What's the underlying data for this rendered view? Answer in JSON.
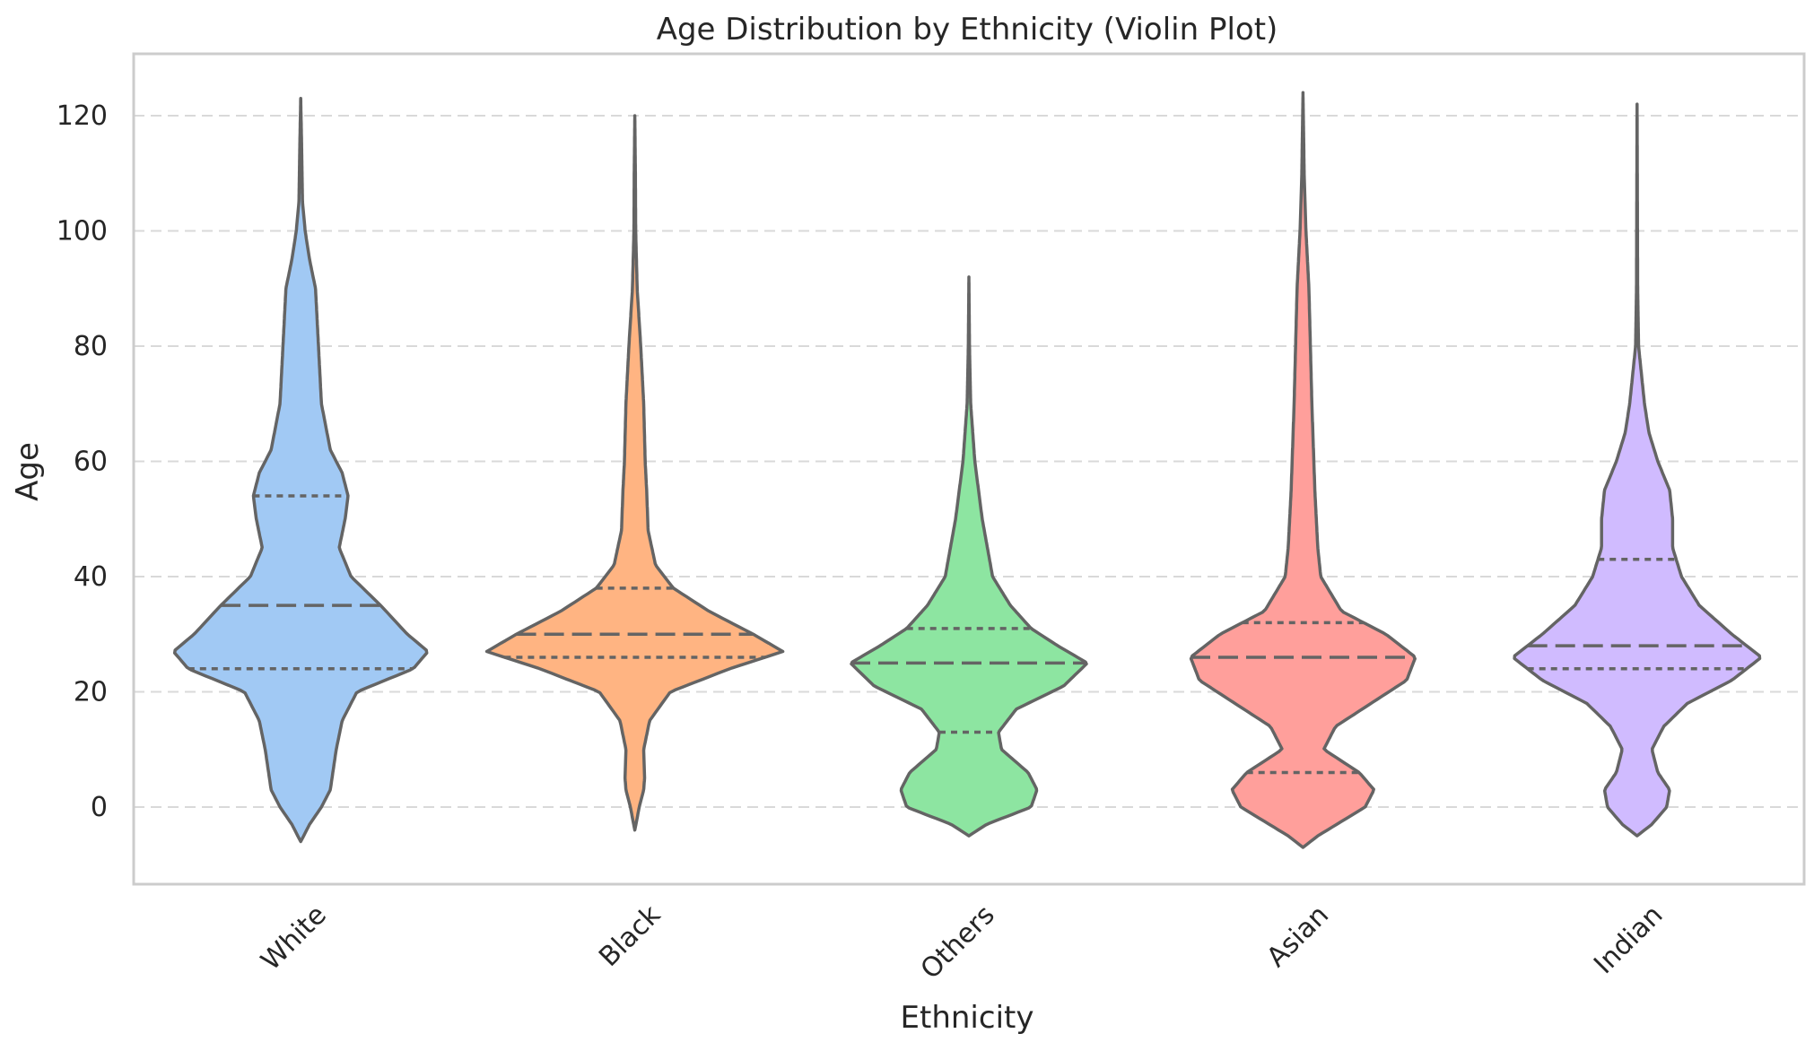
{
  "chart_data": {
    "type": "violin",
    "title": "Age Distribution by Ethnicity (Violin Plot)",
    "xlabel": "Ethnicity",
    "ylabel": "Age",
    "ylim": [
      -13,
      130
    ],
    "yticks": [
      0,
      20,
      40,
      60,
      80,
      100,
      120
    ],
    "grid": "horizontal-dashed",
    "categories": [
      "White",
      "Black",
      "Others",
      "Asian",
      "Indian"
    ],
    "colors": [
      "#a1c9f4",
      "#ffb482",
      "#8de5a1",
      "#ff9f9b",
      "#d0bbff"
    ],
    "series": [
      {
        "name": "White",
        "min": -6,
        "max": 123,
        "q1": 24,
        "median": 35,
        "q3": 54,
        "density": [
          [
            -6,
            0.0
          ],
          [
            -3,
            0.03
          ],
          [
            0,
            0.07
          ],
          [
            3,
            0.1
          ],
          [
            10,
            0.12
          ],
          [
            15,
            0.14
          ],
          [
            20,
            0.19
          ],
          [
            24,
            0.38
          ],
          [
            27,
            0.43
          ],
          [
            30,
            0.36
          ],
          [
            35,
            0.27
          ],
          [
            40,
            0.17
          ],
          [
            45,
            0.13
          ],
          [
            50,
            0.15
          ],
          [
            54,
            0.16
          ],
          [
            58,
            0.14
          ],
          [
            62,
            0.1
          ],
          [
            70,
            0.07
          ],
          [
            80,
            0.06
          ],
          [
            90,
            0.05
          ],
          [
            95,
            0.03
          ],
          [
            100,
            0.015
          ],
          [
            105,
            0.006
          ],
          [
            115,
            0.003
          ],
          [
            123,
            0.0
          ]
        ]
      },
      {
        "name": "Black",
        "min": -4,
        "max": 120,
        "q1": 26,
        "median": 30,
        "q3": 38,
        "density": [
          [
            -4,
            0.0
          ],
          [
            0,
            0.015
          ],
          [
            3,
            0.03
          ],
          [
            5,
            0.033
          ],
          [
            10,
            0.03
          ],
          [
            15,
            0.05
          ],
          [
            20,
            0.12
          ],
          [
            24,
            0.32
          ],
          [
            27,
            0.5
          ],
          [
            30,
            0.4
          ],
          [
            34,
            0.25
          ],
          [
            38,
            0.13
          ],
          [
            42,
            0.07
          ],
          [
            48,
            0.045
          ],
          [
            55,
            0.04
          ],
          [
            60,
            0.035
          ],
          [
            70,
            0.03
          ],
          [
            80,
            0.02
          ],
          [
            90,
            0.008
          ],
          [
            100,
            0.003
          ],
          [
            110,
            0.002
          ],
          [
            120,
            0.0
          ]
        ]
      },
      {
        "name": "Others",
        "min": -5,
        "max": 92,
        "q1": 13,
        "median": 25,
        "q3": 31,
        "density": [
          [
            -5,
            0.0
          ],
          [
            -3,
            0.06
          ],
          [
            0,
            0.21
          ],
          [
            3,
            0.23
          ],
          [
            6,
            0.2
          ],
          [
            10,
            0.11
          ],
          [
            13,
            0.1
          ],
          [
            17,
            0.16
          ],
          [
            21,
            0.32
          ],
          [
            25,
            0.4
          ],
          [
            28,
            0.3
          ],
          [
            31,
            0.21
          ],
          [
            35,
            0.14
          ],
          [
            40,
            0.08
          ],
          [
            50,
            0.045
          ],
          [
            60,
            0.02
          ],
          [
            70,
            0.006
          ],
          [
            80,
            0.002
          ],
          [
            92,
            0.0
          ]
        ]
      },
      {
        "name": "Asian",
        "min": -7,
        "max": 124,
        "q1": 6,
        "median": 26,
        "q3": 32,
        "density": [
          [
            -7,
            0.0
          ],
          [
            -5,
            0.05
          ],
          [
            0,
            0.21
          ],
          [
            3,
            0.24
          ],
          [
            6,
            0.19
          ],
          [
            10,
            0.07
          ],
          [
            14,
            0.11
          ],
          [
            18,
            0.23
          ],
          [
            22,
            0.35
          ],
          [
            26,
            0.38
          ],
          [
            30,
            0.28
          ],
          [
            34,
            0.13
          ],
          [
            40,
            0.06
          ],
          [
            45,
            0.05
          ],
          [
            55,
            0.04
          ],
          [
            70,
            0.03
          ],
          [
            80,
            0.025
          ],
          [
            90,
            0.02
          ],
          [
            100,
            0.01
          ],
          [
            110,
            0.004
          ],
          [
            124,
            0.0
          ]
        ]
      },
      {
        "name": "Indian",
        "min": -5,
        "max": 122,
        "q1": 24,
        "median": 28,
        "q3": 43,
        "density": [
          [
            -5,
            0.0
          ],
          [
            -3,
            0.05
          ],
          [
            0,
            0.1
          ],
          [
            3,
            0.11
          ],
          [
            6,
            0.07
          ],
          [
            10,
            0.05
          ],
          [
            14,
            0.09
          ],
          [
            18,
            0.17
          ],
          [
            22,
            0.32
          ],
          [
            26,
            0.42
          ],
          [
            30,
            0.32
          ],
          [
            35,
            0.21
          ],
          [
            40,
            0.15
          ],
          [
            45,
            0.12
          ],
          [
            50,
            0.12
          ],
          [
            55,
            0.11
          ],
          [
            60,
            0.07
          ],
          [
            65,
            0.04
          ],
          [
            70,
            0.025
          ],
          [
            80,
            0.005
          ],
          [
            90,
            0.002
          ],
          [
            122,
            0.0
          ]
        ]
      }
    ]
  }
}
